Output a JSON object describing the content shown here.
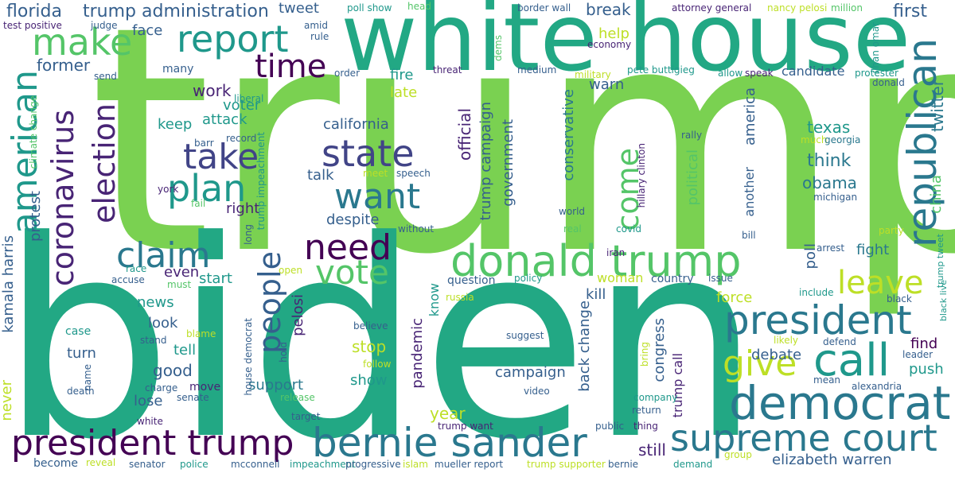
{
  "palette": {
    "lime": "#7ad151",
    "green": "#22a884",
    "teal": "#2a788e",
    "blue": "#414487",
    "purple": "#440154",
    "yellow": "#bddf26",
    "light_green": "#54c568",
    "sea": "#1f988b",
    "steel": "#355f8d",
    "indigo": "#482475"
  },
  "words": [
    {
      "text": "trump",
      "color": "lime"
    },
    {
      "text": "biden",
      "color": "green"
    },
    {
      "text": "white house",
      "color": "green"
    },
    {
      "text": "donald trump",
      "color": "light_green"
    },
    {
      "text": "president",
      "color": "teal"
    },
    {
      "text": "bernie sander",
      "color": "teal"
    },
    {
      "text": "supreme court",
      "color": "teal"
    },
    {
      "text": "democrat",
      "color": "teal"
    },
    {
      "text": "president trump",
      "color": "purple"
    },
    {
      "text": "republican",
      "color": "teal"
    },
    {
      "text": "call",
      "color": "sea"
    },
    {
      "text": "american",
      "color": "sea"
    },
    {
      "text": "make",
      "color": "light_green"
    },
    {
      "text": "report",
      "color": "sea"
    },
    {
      "text": "time",
      "color": "purple"
    },
    {
      "text": "take",
      "color": "blue"
    },
    {
      "text": "state",
      "color": "blue"
    },
    {
      "text": "plan",
      "color": "sea"
    },
    {
      "text": "want",
      "color": "teal"
    },
    {
      "text": "claim",
      "color": "teal"
    },
    {
      "text": "need",
      "color": "purple"
    },
    {
      "text": "vote",
      "color": "light_green"
    },
    {
      "text": "people",
      "color": "steel"
    },
    {
      "text": "give",
      "color": "yellow"
    },
    {
      "text": "leave",
      "color": "yellow"
    },
    {
      "text": "come",
      "color": "light_green"
    },
    {
      "text": "election",
      "color": "indigo"
    },
    {
      "text": "coronavirus",
      "color": "indigo"
    },
    {
      "text": "florida",
      "color": "steel"
    },
    {
      "text": "trump administration",
      "color": "steel"
    },
    {
      "text": "tweet",
      "color": "steel"
    },
    {
      "text": "break",
      "color": "steel"
    },
    {
      "text": "first",
      "color": "steel"
    },
    {
      "text": "face",
      "color": "steel"
    },
    {
      "text": "former",
      "color": "steel"
    },
    {
      "text": "work",
      "color": "indigo"
    },
    {
      "text": "many",
      "color": "steel"
    },
    {
      "text": "help",
      "color": "yellow"
    },
    {
      "text": "warn",
      "color": "steel"
    },
    {
      "text": "fire",
      "color": "sea"
    },
    {
      "text": "late",
      "color": "yellow"
    },
    {
      "text": "voter",
      "color": "sea"
    },
    {
      "text": "california",
      "color": "steel"
    },
    {
      "text": "keep",
      "color": "sea"
    },
    {
      "text": "attack",
      "color": "sea"
    },
    {
      "text": "talk",
      "color": "steel"
    },
    {
      "text": "right",
      "color": "indigo"
    },
    {
      "text": "despite",
      "color": "steel"
    },
    {
      "text": "texas",
      "color": "sea"
    },
    {
      "text": "think",
      "color": "teal"
    },
    {
      "text": "obama",
      "color": "teal"
    },
    {
      "text": "candidate",
      "color": "steel"
    },
    {
      "text": "twitter",
      "color": "teal"
    },
    {
      "text": "china",
      "color": "light_green"
    },
    {
      "text": "official",
      "color": "indigo"
    },
    {
      "text": "trump campaign",
      "color": "steel"
    },
    {
      "text": "government",
      "color": "steel"
    },
    {
      "text": "conservative",
      "color": "teal"
    },
    {
      "text": "political",
      "color": "light_green"
    },
    {
      "text": "america",
      "color": "steel"
    },
    {
      "text": "another",
      "color": "steel"
    },
    {
      "text": "protest",
      "color": "steel"
    },
    {
      "text": "kamala harris",
      "color": "steel"
    },
    {
      "text": "even",
      "color": "indigo"
    },
    {
      "text": "start",
      "color": "sea"
    },
    {
      "text": "news",
      "color": "sea"
    },
    {
      "text": "look",
      "color": "steel"
    },
    {
      "text": "tell",
      "color": "sea"
    },
    {
      "text": "good",
      "color": "steel"
    },
    {
      "text": "lose",
      "color": "steel"
    },
    {
      "text": "turn",
      "color": "steel"
    },
    {
      "text": "never",
      "color": "yellow"
    },
    {
      "text": "support",
      "color": "teal"
    },
    {
      "text": "stop",
      "color": "yellow"
    },
    {
      "text": "show",
      "color": "sea"
    },
    {
      "text": "campaign",
      "color": "steel"
    },
    {
      "text": "year",
      "color": "yellow"
    },
    {
      "text": "pandemic",
      "color": "indigo"
    },
    {
      "text": "know",
      "color": "sea"
    },
    {
      "text": "back change",
      "color": "steel"
    },
    {
      "text": "kill",
      "color": "steel"
    },
    {
      "text": "woman",
      "color": "yellow"
    },
    {
      "text": "country",
      "color": "steel"
    },
    {
      "text": "force",
      "color": "yellow"
    },
    {
      "text": "congress",
      "color": "steel"
    },
    {
      "text": "trump call",
      "color": "indigo"
    },
    {
      "text": "debate",
      "color": "steel"
    },
    {
      "text": "push",
      "color": "sea"
    },
    {
      "text": "find",
      "color": "purple"
    },
    {
      "text": "fight",
      "color": "teal"
    },
    {
      "text": "poll",
      "color": "steel"
    },
    {
      "text": "still",
      "color": "indigo"
    },
    {
      "text": "elizabeth warren",
      "color": "steel"
    },
    {
      "text": "pelosi",
      "color": "indigo"
    },
    {
      "text": "question",
      "color": "steel"
    },
    {
      "text": "poll show",
      "color": "sea"
    },
    {
      "text": "head",
      "color": "light_green"
    },
    {
      "text": "border wall",
      "color": "steel"
    },
    {
      "text": "attorney general",
      "color": "indigo"
    },
    {
      "text": "nancy pelosi",
      "color": "yellow"
    },
    {
      "text": "million",
      "color": "light_green"
    },
    {
      "text": "ilhan omar",
      "color": "sea"
    },
    {
      "text": "test positive",
      "color": "indigo"
    },
    {
      "text": "judge",
      "color": "steel"
    },
    {
      "text": "amid",
      "color": "steel"
    },
    {
      "text": "rule",
      "color": "steel"
    },
    {
      "text": "dems",
      "color": "light_green"
    },
    {
      "text": "economy",
      "color": "indigo"
    },
    {
      "text": "military",
      "color": "yellow"
    },
    {
      "text": "medium",
      "color": "steel"
    },
    {
      "text": "threat",
      "color": "indigo"
    },
    {
      "text": "order",
      "color": "steel"
    },
    {
      "text": "pete buttigieg",
      "color": "sea"
    },
    {
      "text": "allow",
      "color": "sea"
    },
    {
      "text": "speak",
      "color": "indigo"
    },
    {
      "text": "protester",
      "color": "sea"
    },
    {
      "text": "donald",
      "color": "steel"
    },
    {
      "text": "send",
      "color": "steel"
    },
    {
      "text": "liberal",
      "color": "sea"
    },
    {
      "text": "climate change",
      "color": "light_green"
    },
    {
      "text": "barr",
      "color": "steel"
    },
    {
      "text": "record",
      "color": "steel"
    },
    {
      "text": "trump impeachment",
      "color": "sea"
    },
    {
      "text": "rally",
      "color": "steel"
    },
    {
      "text": "hillary clinton",
      "color": "indigo"
    },
    {
      "text": "much",
      "color": "yellow"
    },
    {
      "text": "georgia",
      "color": "teal"
    },
    {
      "text": "michigan",
      "color": "steel"
    },
    {
      "text": "york",
      "color": "indigo"
    },
    {
      "text": "meet",
      "color": "yellow"
    },
    {
      "text": "speech",
      "color": "steel"
    },
    {
      "text": "fail",
      "color": "light_green"
    },
    {
      "text": "world",
      "color": "steel"
    },
    {
      "text": "real",
      "color": "light_green"
    },
    {
      "text": "covid",
      "color": "sea"
    },
    {
      "text": "long",
      "color": "steel"
    },
    {
      "text": "without",
      "color": "steel"
    },
    {
      "text": "bill",
      "color": "steel"
    },
    {
      "text": "party",
      "color": "yellow"
    },
    {
      "text": "arrest",
      "color": "steel"
    },
    {
      "text": "iran",
      "color": "indigo"
    },
    {
      "text": "open",
      "color": "yellow"
    },
    {
      "text": "race",
      "color": "sea"
    },
    {
      "text": "accuse",
      "color": "steel"
    },
    {
      "text": "must",
      "color": "light_green"
    },
    {
      "text": "policy",
      "color": "sea"
    },
    {
      "text": "issue",
      "color": "steel"
    },
    {
      "text": "include",
      "color": "sea"
    },
    {
      "text": "black",
      "color": "steel"
    },
    {
      "text": "black live",
      "color": "sea"
    },
    {
      "text": "trump tweet",
      "color": "sea"
    },
    {
      "text": "russia",
      "color": "yellow"
    },
    {
      "text": "case",
      "color": "sea"
    },
    {
      "text": "blame",
      "color": "yellow"
    },
    {
      "text": "stand",
      "color": "steel"
    },
    {
      "text": "believe",
      "color": "steel"
    },
    {
      "text": "suggest",
      "color": "steel"
    },
    {
      "text": "house democrat",
      "color": "steel"
    },
    {
      "text": "hold",
      "color": "steel"
    },
    {
      "text": "follow",
      "color": "yellow"
    },
    {
      "text": "likely",
      "color": "yellow"
    },
    {
      "text": "defend",
      "color": "steel"
    },
    {
      "text": "leader",
      "color": "steel"
    },
    {
      "text": "bring",
      "color": "yellow"
    },
    {
      "text": "name",
      "color": "steel"
    },
    {
      "text": "charge",
      "color": "steel"
    },
    {
      "text": "move",
      "color": "indigo"
    },
    {
      "text": "death",
      "color": "steel"
    },
    {
      "text": "senate",
      "color": "steel"
    },
    {
      "text": "release",
      "color": "light_green"
    },
    {
      "text": "video",
      "color": "steel"
    },
    {
      "text": "mean",
      "color": "steel"
    },
    {
      "text": "alexandria",
      "color": "steel"
    },
    {
      "text": "company",
      "color": "sea"
    },
    {
      "text": "white",
      "color": "indigo"
    },
    {
      "text": "target",
      "color": "steel"
    },
    {
      "text": "trump want",
      "color": "indigo"
    },
    {
      "text": "public",
      "color": "steel"
    },
    {
      "text": "thing",
      "color": "indigo"
    },
    {
      "text": "return",
      "color": "steel"
    },
    {
      "text": "become",
      "color": "steel"
    },
    {
      "text": "reveal",
      "color": "yellow"
    },
    {
      "text": "senator",
      "color": "steel"
    },
    {
      "text": "police",
      "color": "sea"
    },
    {
      "text": "mcconnell",
      "color": "steel"
    },
    {
      "text": "impeachment",
      "color": "sea"
    },
    {
      "text": "progressive",
      "color": "steel"
    },
    {
      "text": "islam",
      "color": "yellow"
    },
    {
      "text": "mueller report",
      "color": "steel"
    },
    {
      "text": "trump supporter",
      "color": "yellow"
    },
    {
      "text": "bernie",
      "color": "steel"
    },
    {
      "text": "demand",
      "color": "sea"
    },
    {
      "text": "group",
      "color": "yellow"
    }
  ]
}
